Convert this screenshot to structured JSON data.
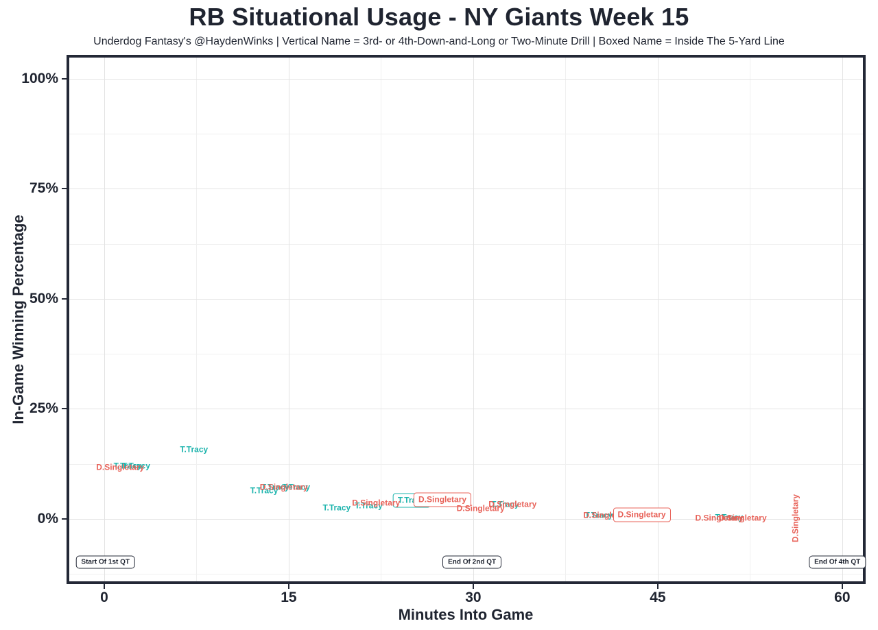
{
  "title": "RB Situational Usage - NY Giants Week 15",
  "subtitle": "Underdog Fantasy's @HaydenWinks | Vertical Name = 3rd- or 4th-Down-and-Long or Two-Minute Drill | Boxed Name = Inside The 5-Yard Line",
  "colors": {
    "tracy_teal": "#1db4ad",
    "singletary_red": "#e8635a",
    "axis_dark": "#1f2430",
    "grid_major": "#e3e3e3",
    "grid_minor": "#f0f0f0",
    "panel_background": "#ffffff"
  },
  "chart_data": {
    "type": "scatter",
    "title": "RB Situational Usage - NY Giants Week 15",
    "subtitle": "Underdog Fantasy's @HaydenWinks | Vertical Name = 3rd- or 4th-Down-and-Long or Two-Minute Drill | Boxed Name = Inside The 5-Yard Line",
    "xlabel": "Minutes Into Game",
    "ylabel": "In-Game Winning Percentage",
    "xlim": [
      -2.84,
      61.68
    ],
    "ylim": [
      -14.2,
      104.8
    ],
    "grid": true,
    "legend": "none",
    "x_ticks": [
      {
        "value": 0,
        "label": "0"
      },
      {
        "value": 15,
        "label": "15"
      },
      {
        "value": 30,
        "label": "30"
      },
      {
        "value": 45,
        "label": "45"
      },
      {
        "value": 60,
        "label": "60"
      }
    ],
    "y_ticks": [
      {
        "value": 0,
        "label": "0%"
      },
      {
        "value": 25,
        "label": "25%"
      },
      {
        "value": 50,
        "label": "50%"
      },
      {
        "value": 75,
        "label": "75%"
      },
      {
        "value": 100,
        "label": "100%"
      }
    ],
    "x_minor_ticks": [
      7.5,
      22.5,
      37.5,
      52.5
    ],
    "y_minor_ticks": [
      -12.5,
      12.5,
      37.5,
      62.5,
      87.5
    ],
    "series": [
      {
        "name": "T.Tracy",
        "color": "#1db4ad",
        "points": [
          {
            "x": 1.9,
            "y": 11.9,
            "style": "plain"
          },
          {
            "x": 2.6,
            "y": 11.9,
            "style": "plain"
          },
          {
            "x": 7.3,
            "y": 15.7,
            "style": "plain"
          },
          {
            "x": 13.0,
            "y": 6.3,
            "style": "plain"
          },
          {
            "x": 13.9,
            "y": 7.2,
            "style": "plain"
          },
          {
            "x": 15.6,
            "y": 7.2,
            "style": "plain"
          },
          {
            "x": 18.9,
            "y": 2.4,
            "style": "plain"
          },
          {
            "x": 21.5,
            "y": 2.9,
            "style": "plain"
          },
          {
            "x": 25.0,
            "y": 4.2,
            "style": "boxed"
          },
          {
            "x": 32.6,
            "y": 3.2,
            "style": "plain"
          },
          {
            "x": 40.2,
            "y": 0.8,
            "style": "plain"
          },
          {
            "x": 50.8,
            "y": 0.3,
            "style": "plain"
          }
        ]
      },
      {
        "name": "D.Singletary",
        "color": "#e8635a",
        "points": [
          {
            "x": 1.3,
            "y": 11.6,
            "style": "plain"
          },
          {
            "x": 14.6,
            "y": 7.2,
            "style": "plain"
          },
          {
            "x": 22.1,
            "y": 3.6,
            "style": "plain"
          },
          {
            "x": 27.5,
            "y": 4.4,
            "style": "boxed"
          },
          {
            "x": 30.6,
            "y": 2.3,
            "style": "plain"
          },
          {
            "x": 33.2,
            "y": 3.3,
            "style": "plain"
          },
          {
            "x": 40.9,
            "y": 0.8,
            "style": "plain"
          },
          {
            "x": 43.7,
            "y": 0.9,
            "style": "boxed"
          },
          {
            "x": 50.0,
            "y": 0.1,
            "style": "plain"
          },
          {
            "x": 51.9,
            "y": 0.1,
            "style": "plain"
          },
          {
            "x": 56.2,
            "y": 0.2,
            "style": "vertical"
          }
        ]
      }
    ],
    "annotations": [
      {
        "label": "Start Of 1st QT",
        "x": 0.1,
        "y": -9.8
      },
      {
        "label": "End Of 2nd QT",
        "x": 29.9,
        "y": -9.8
      },
      {
        "label": "End Of 4th QT",
        "x": 59.6,
        "y": -9.8
      }
    ]
  }
}
